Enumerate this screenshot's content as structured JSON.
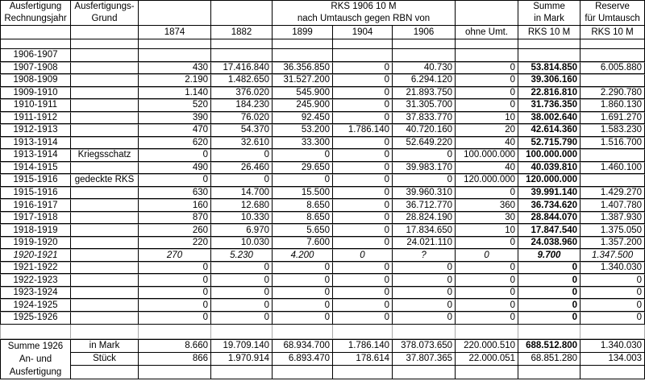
{
  "colors": {
    "border": "#000000",
    "gridline": "#a9a9a9",
    "background": "#ffffff",
    "text": "#000000"
  },
  "header": {
    "col_rechnungsjahr": [
      "Ausfertigung",
      "Rechnungsjahr"
    ],
    "col_grund": [
      "Ausfertigungs-",
      "Grund"
    ],
    "group_rks": [
      "RKS 1906 10 M",
      "nach Umtausch gegen RBN von"
    ],
    "year_columns": [
      "1874",
      "1882",
      "1899",
      "1904",
      "1906",
      "ohne Umt."
    ],
    "col_summe": [
      "Summe",
      "in Mark",
      "RKS 10 M"
    ],
    "col_reserve": [
      "Reserve",
      "für Umtausch",
      "RKS 10 M"
    ]
  },
  "rows": [
    {
      "year": "1906-1907",
      "grund": "",
      "values": [
        "",
        "",
        "",
        "",
        "",
        ""
      ],
      "summe": "",
      "reserve": ""
    },
    {
      "year": "1907-1908",
      "grund": "",
      "values": [
        "430",
        "17.416.840",
        "36.356.850",
        "0",
        "40.730",
        "0"
      ],
      "summe": "53.814.850",
      "reserve": "6.005.880"
    },
    {
      "year": "1908-1909",
      "grund": "",
      "values": [
        "2.190",
        "1.482.650",
        "31.527.200",
        "0",
        "6.294.120",
        "0"
      ],
      "summe": "39.306.160",
      "reserve": ""
    },
    {
      "year": "1909-1910",
      "grund": "",
      "values": [
        "1.140",
        "376.020",
        "545.900",
        "0",
        "21.893.750",
        "0"
      ],
      "summe": "22.816.810",
      "reserve": "2.290.780"
    },
    {
      "year": "1910-1911",
      "grund": "",
      "values": [
        "520",
        "184.230",
        "245.900",
        "0",
        "31.305.700",
        "0"
      ],
      "summe": "31.736.350",
      "reserve": "1.860.130"
    },
    {
      "year": "1911-1912",
      "grund": "",
      "values": [
        "390",
        "76.020",
        "92.450",
        "0",
        "37.833.770",
        "10"
      ],
      "summe": "38.002.640",
      "reserve": "1.691.270"
    },
    {
      "year": "1912-1913",
      "grund": "",
      "values": [
        "470",
        "54.370",
        "53.200",
        "1.786.140",
        "40.720.160",
        "20"
      ],
      "summe": "42.614.360",
      "reserve": "1.583.230"
    },
    {
      "year": "1913-1914",
      "grund": "",
      "values": [
        "620",
        "32.610",
        "33.300",
        "0",
        "52.649.220",
        "40"
      ],
      "summe": "52.715.790",
      "reserve": "1.516.700"
    },
    {
      "year": "1913-1914",
      "grund": "Kriegsschatz",
      "values": [
        "0",
        "0",
        "0",
        "0",
        "0",
        "100.000.000"
      ],
      "summe": "100.000.000",
      "reserve": ""
    },
    {
      "year": "1914-1915",
      "grund": "",
      "values": [
        "490",
        "26.460",
        "29.650",
        "0",
        "39.983.170",
        "40"
      ],
      "summe": "40.039.810",
      "reserve": "1.460.100"
    },
    {
      "year": "1915-1916",
      "grund": "gedeckte RKS",
      "values": [
        "0",
        "0",
        "0",
        "0",
        "0",
        "120.000.000"
      ],
      "summe": "120.000.000",
      "reserve": ""
    },
    {
      "year": "1915-1916",
      "grund": "",
      "values": [
        "630",
        "14.700",
        "15.500",
        "0",
        "39.960.310",
        "0"
      ],
      "summe": "39.991.140",
      "reserve": "1.429.270"
    },
    {
      "year": "1916-1917",
      "grund": "",
      "values": [
        "160",
        "12.680",
        "8.650",
        "0",
        "36.712.770",
        "360"
      ],
      "summe": "36.734.620",
      "reserve": "1.407.780"
    },
    {
      "year": "1917-1918",
      "grund": "",
      "values": [
        "870",
        "10.330",
        "8.650",
        "0",
        "28.824.190",
        "30"
      ],
      "summe": "28.844.070",
      "reserve": "1.387.930"
    },
    {
      "year": "1918-1919",
      "grund": "",
      "values": [
        "260",
        "6.970",
        "5.650",
        "0",
        "17.834.650",
        "10"
      ],
      "summe": "17.847.540",
      "reserve": "1.375.050"
    },
    {
      "year": "1919-1920",
      "grund": "",
      "values": [
        "220",
        "10.030",
        "7.600",
        "0",
        "24.021.110",
        "0"
      ],
      "summe": "24.038.960",
      "reserve": "1.357.200"
    },
    {
      "year": "1920-1921",
      "grund": "",
      "values": [
        "270",
        "5.230",
        "4.200",
        "0",
        "?",
        "0"
      ],
      "summe": "9.700",
      "reserve": "1.347.500",
      "italic": true
    },
    {
      "year": "1921-1922",
      "grund": "",
      "values": [
        "0",
        "0",
        "0",
        "0",
        "0",
        "0"
      ],
      "summe": "0",
      "reserve": "1.340.030"
    },
    {
      "year": "1922-1923",
      "grund": "",
      "values": [
        "0",
        "0",
        "0",
        "0",
        "0",
        "0"
      ],
      "summe": "0",
      "reserve": "0"
    },
    {
      "year": "1923-1924",
      "grund": "",
      "values": [
        "0",
        "0",
        "0",
        "0",
        "0",
        "0"
      ],
      "summe": "0",
      "reserve": "0"
    },
    {
      "year": "1924-1925",
      "grund": "",
      "values": [
        "0",
        "0",
        "0",
        "0",
        "0",
        "0"
      ],
      "summe": "0",
      "reserve": "0"
    },
    {
      "year": "1925-1926",
      "grund": "",
      "values": [
        "0",
        "0",
        "0",
        "0",
        "0",
        "0"
      ],
      "summe": "0",
      "reserve": "0"
    }
  ],
  "footer": {
    "labels": [
      "Summe 1926",
      "An- und",
      "Ausfertigung"
    ],
    "rows": [
      {
        "unit": "in Mark",
        "values": [
          "8.660",
          "19.709.140",
          "68.934.700",
          "1.786.140",
          "378.073.650",
          "220.000.510"
        ],
        "summe": "688.512.800",
        "reserve": "1.340.030"
      },
      {
        "unit": "Stück",
        "values": [
          "866",
          "1.970.914",
          "6.893.470",
          "178.614",
          "37.807.365",
          "22.000.051"
        ],
        "summe": "68.851.280",
        "reserve": "134.003"
      }
    ]
  }
}
